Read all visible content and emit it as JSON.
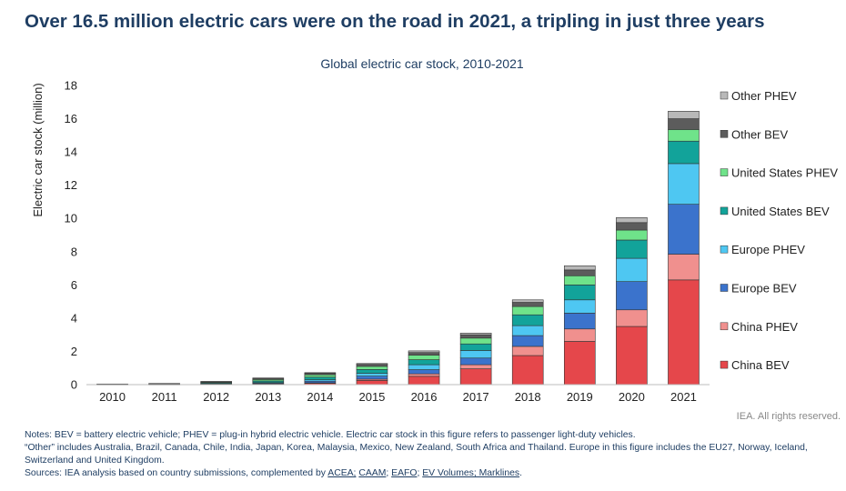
{
  "headline": "Over 16.5 million electric cars were on the road in 2021, a tripling in just three years",
  "rights": "IEA. All rights reserved.",
  "notes": {
    "line1": "Notes: BEV = battery electric vehicle; PHEV = plug-in hybrid electric vehicle. Electric car stock in this figure refers to passenger light-duty vehicles.",
    "line2": "“Other” includes Australia, Brazil, Canada, Chile, India, Japan, Korea, Malaysia, Mexico, New Zealand, South Africa and Thailand. Europe in this figure includes the EU27, Norway, Iceland, Switzerland and United Kingdom.",
    "sources_prefix": "Sources: IEA analysis based on country submissions, complemented by ",
    "links": [
      "ACEA;",
      "CAAM",
      "EAFO",
      "EV Volumes; Marklines"
    ],
    "separators": [
      " ",
      "; ",
      "; "
    ],
    "sources_suffix": "."
  },
  "chart_data": {
    "type": "bar",
    "stacked": true,
    "title": "Global electric car stock, 2010-2021",
    "xlabel": "",
    "ylabel": "Electric car stock (million)",
    "ylim": [
      0,
      18
    ],
    "yticks": [
      0,
      2,
      4,
      6,
      8,
      10,
      12,
      14,
      16,
      18
    ],
    "grid": false,
    "legend_position": "right",
    "categories": [
      "2010",
      "2011",
      "2012",
      "2013",
      "2014",
      "2015",
      "2016",
      "2017",
      "2018",
      "2019",
      "2020",
      "2021"
    ],
    "series": [
      {
        "name": "China BEV",
        "color": "#e5474b",
        "values": [
          0.01,
          0.01,
          0.02,
          0.03,
          0.08,
          0.25,
          0.5,
          0.95,
          1.75,
          2.6,
          3.5,
          6.3
        ]
      },
      {
        "name": "China PHEV",
        "color": "#f0908e",
        "values": [
          0,
          0,
          0,
          0.01,
          0.03,
          0.08,
          0.15,
          0.25,
          0.55,
          0.75,
          1.0,
          1.55
        ]
      },
      {
        "name": "Europe BEV",
        "color": "#3b73cc",
        "values": [
          0.01,
          0.01,
          0.02,
          0.05,
          0.1,
          0.18,
          0.25,
          0.4,
          0.65,
          0.95,
          1.7,
          3.0
        ]
      },
      {
        "name": "Europe PHEV",
        "color": "#4ec7f2",
        "values": [
          0,
          0,
          0.01,
          0.03,
          0.08,
          0.17,
          0.3,
          0.45,
          0.6,
          0.8,
          1.4,
          2.45
        ]
      },
      {
        "name": "United States BEV",
        "color": "#12a39a",
        "values": [
          0.01,
          0.02,
          0.05,
          0.1,
          0.16,
          0.23,
          0.3,
          0.4,
          0.65,
          0.9,
          1.1,
          1.35
        ]
      },
      {
        "name": "United States PHEV",
        "color": "#6fe38a",
        "values": [
          0,
          0.01,
          0.04,
          0.09,
          0.14,
          0.19,
          0.27,
          0.35,
          0.5,
          0.55,
          0.6,
          0.7
        ]
      },
      {
        "name": "Other BEV",
        "color": "#5c5c5c",
        "values": [
          0.01,
          0.02,
          0.04,
          0.07,
          0.1,
          0.12,
          0.16,
          0.2,
          0.25,
          0.35,
          0.45,
          0.65
        ]
      },
      {
        "name": "Other PHEV",
        "color": "#b8b8b8",
        "values": [
          0,
          0,
          0.01,
          0.02,
          0.03,
          0.05,
          0.1,
          0.1,
          0.15,
          0.25,
          0.3,
          0.45
        ]
      }
    ]
  }
}
